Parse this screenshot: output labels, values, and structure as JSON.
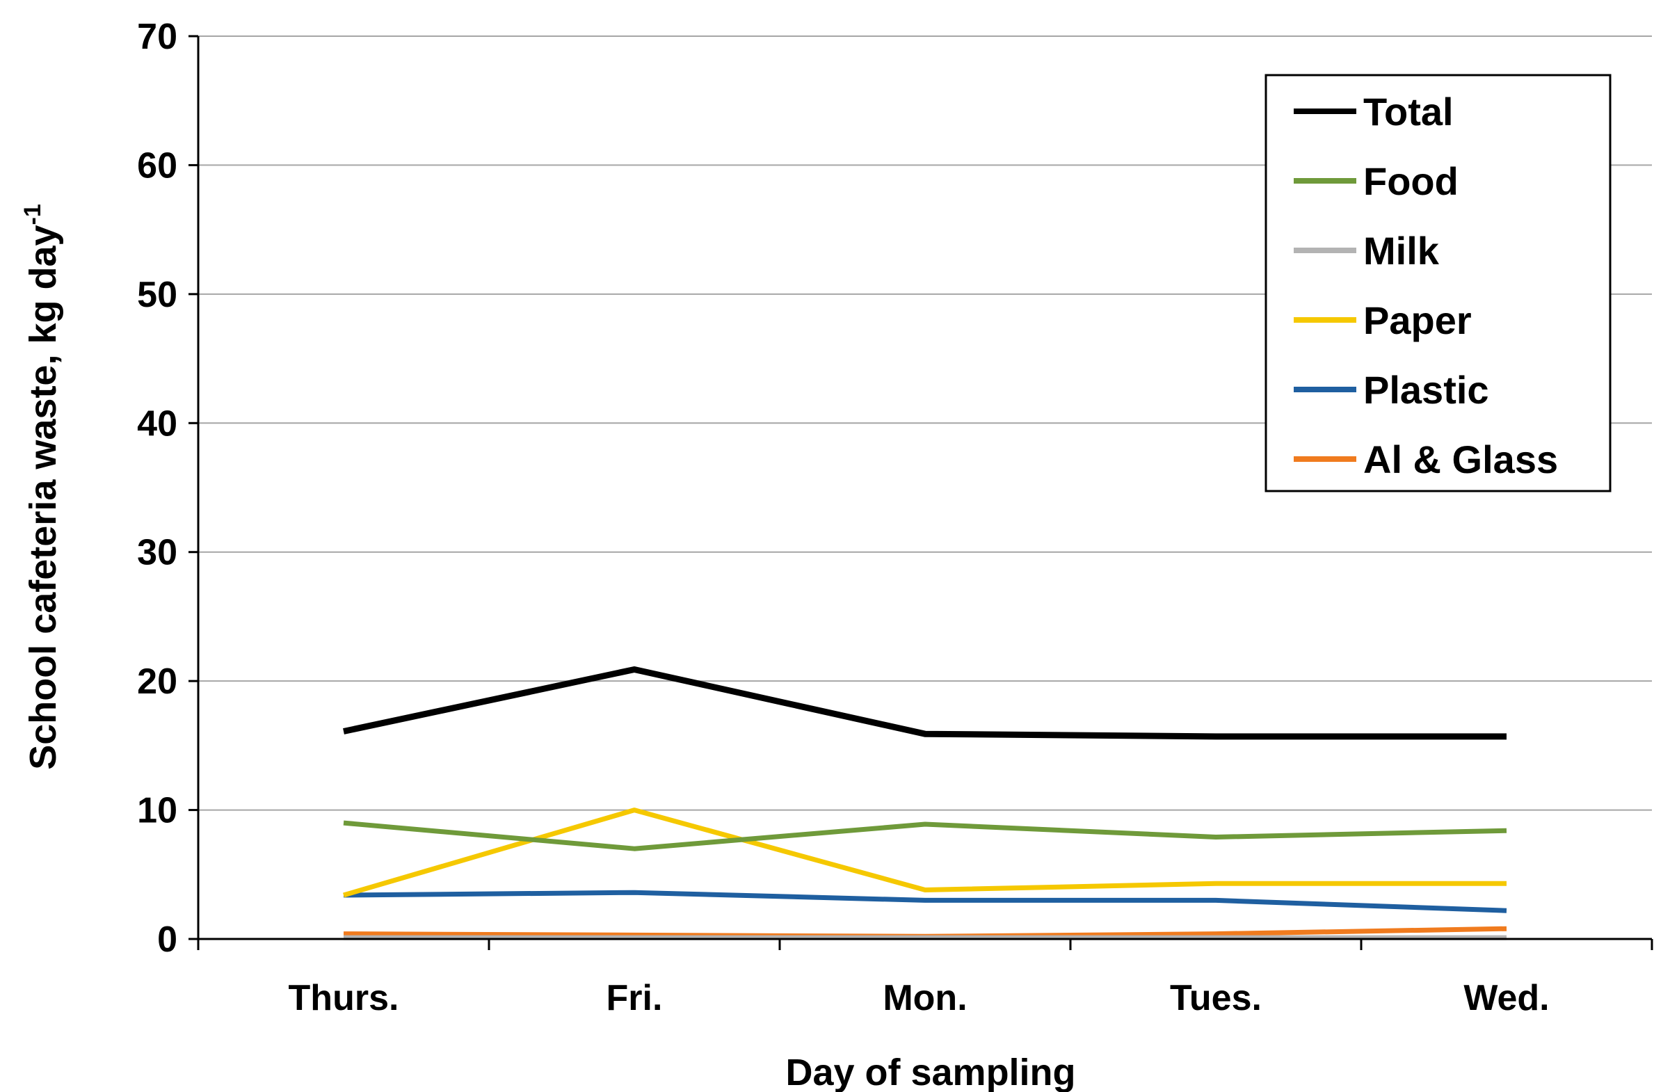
{
  "chart_data": {
    "type": "line",
    "title": "",
    "xlabel": "Day of sampling",
    "ylabel": "School cafeteria waste, kg day",
    "ylabel_superscript": "-1",
    "categories": [
      "Thurs.",
      "Fri.",
      "Mon.",
      "Tues.",
      "Wed."
    ],
    "ylim": [
      0,
      70
    ],
    "yticks": [
      "0",
      "10",
      "20",
      "30",
      "40",
      "50",
      "60",
      "70"
    ],
    "grid": true,
    "legend_position": "top-right",
    "series": [
      {
        "name": "Total",
        "color": "#000000",
        "values": [
          16.1,
          20.9,
          15.9,
          15.7,
          15.7
        ]
      },
      {
        "name": "Food",
        "color": "#6f9a3a",
        "values": [
          9.0,
          7.0,
          8.9,
          7.9,
          8.4
        ]
      },
      {
        "name": "Milk",
        "color": "#b3b3b3",
        "values": [
          0.1,
          0.1,
          0.1,
          0.1,
          0.1
        ]
      },
      {
        "name": "Paper",
        "color": "#f5c800",
        "values": [
          3.4,
          10.0,
          3.8,
          4.3,
          4.3
        ]
      },
      {
        "name": "Plastic",
        "color": "#1f5fa0",
        "values": [
          3.4,
          3.6,
          3.0,
          3.0,
          2.2
        ]
      },
      {
        "name": "Al & Glass",
        "color": "#f07b1e",
        "values": [
          0.4,
          0.3,
          0.2,
          0.4,
          0.8
        ]
      }
    ]
  }
}
